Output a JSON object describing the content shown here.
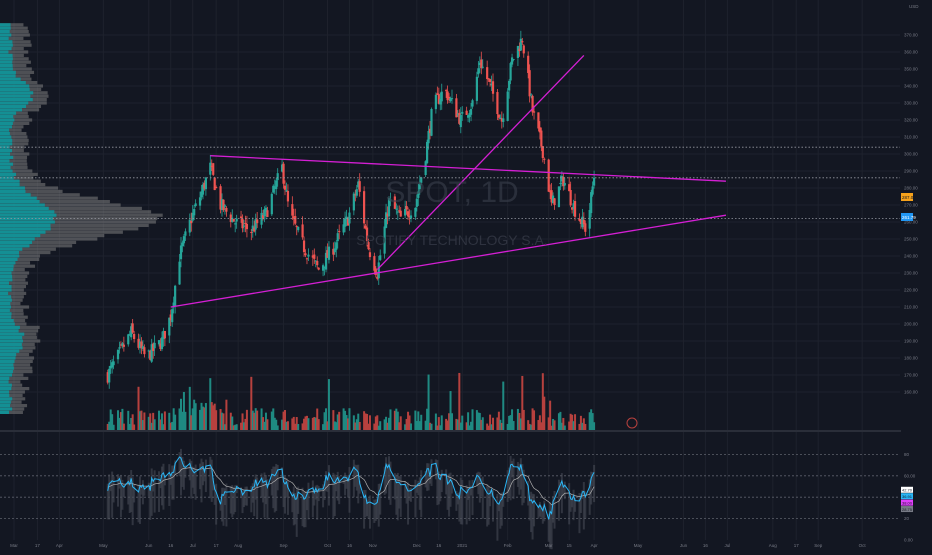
{
  "colors": {
    "background": "#131722",
    "grid": "#1e222d",
    "candle_up": "#26a69a",
    "candle_down": "#ef5350",
    "volume_up": "#1f8a82",
    "volume_down": "#b7413e",
    "trendline": "#d41fd4",
    "volume_profile_dark": "#0a9aa0",
    "volume_profile_light": "#808080",
    "rsi_line": "#29b6f6",
    "rsi_signal": "#b0b0b0",
    "price_tag_orange": "#f7a21b",
    "price_tag_blue": "#2196f3"
  },
  "watermark": {
    "symbol": "SPOT, 1D",
    "name": "SPOTIFY TECHNOLOGY S.A."
  },
  "price_axis": {
    "unit_label": "USD",
    "current_price_tag": "287.00",
    "secondary_price_tag": "261.79"
  },
  "indicator_axis": {
    "level_labels": [
      "80",
      "60.00",
      "40",
      "20",
      "0.00"
    ],
    "value_tags": [
      "42.70",
      "36.91",
      "38.00",
      "28.75"
    ]
  },
  "chart_data": {
    "type": "candlestick",
    "symbol": "SPOT",
    "interval": "1D",
    "ylim": [
      140,
      380
    ],
    "grid": true,
    "x_tick_labels": [
      "Mar",
      "17",
      "Apr",
      "May",
      "Jun",
      "16",
      "Jul",
      "17",
      "Aug",
      "Sep",
      "Oct",
      "16",
      "Nov",
      "Dec",
      "16",
      "2021",
      "Feb",
      "Mar",
      "15",
      "Apr",
      "May",
      "Jun",
      "16",
      "Jul",
      "Aug",
      "17",
      "Sep",
      "Oct"
    ],
    "y_tick_labels": [
      "370.00",
      "360.00",
      "350.00",
      "340.00",
      "330.00",
      "320.00",
      "310.00",
      "300.00",
      "290.00",
      "280.00",
      "270.00",
      "260.00",
      "250.00",
      "240.00",
      "230.00",
      "220.00",
      "210.00",
      "200.00",
      "190.00",
      "180.00",
      "170.00",
      "160.00"
    ],
    "price_path": [
      {
        "date": "2020-05-04",
        "close": 170
      },
      {
        "date": "2020-05-20",
        "close": 195
      },
      {
        "date": "2020-05-30",
        "close": 180
      },
      {
        "date": "2020-06-10",
        "close": 190
      },
      {
        "date": "2020-06-16",
        "close": 205
      },
      {
        "date": "2020-06-22",
        "close": 240
      },
      {
        "date": "2020-06-30",
        "close": 262
      },
      {
        "date": "2020-07-06",
        "close": 275
      },
      {
        "date": "2020-07-13",
        "close": 292
      },
      {
        "date": "2020-07-20",
        "close": 270
      },
      {
        "date": "2020-07-30",
        "close": 260
      },
      {
        "date": "2020-08-10",
        "close": 255
      },
      {
        "date": "2020-08-20",
        "close": 265
      },
      {
        "date": "2020-08-31",
        "close": 292
      },
      {
        "date": "2020-09-05",
        "close": 265
      },
      {
        "date": "2020-09-15",
        "close": 245
      },
      {
        "date": "2020-09-25",
        "close": 232
      },
      {
        "date": "2020-10-05",
        "close": 245
      },
      {
        "date": "2020-10-15",
        "close": 262
      },
      {
        "date": "2020-10-22",
        "close": 282
      },
      {
        "date": "2020-10-29",
        "close": 245
      },
      {
        "date": "2020-11-04",
        "close": 230
      },
      {
        "date": "2020-11-12",
        "close": 272
      },
      {
        "date": "2020-11-20",
        "close": 262
      },
      {
        "date": "2020-11-30",
        "close": 270
      },
      {
        "date": "2020-12-07",
        "close": 300
      },
      {
        "date": "2020-12-12",
        "close": 328
      },
      {
        "date": "2020-12-20",
        "close": 338
      },
      {
        "date": "2020-12-31",
        "close": 320
      },
      {
        "date": "2021-01-08",
        "close": 330
      },
      {
        "date": "2021-01-13",
        "close": 355
      },
      {
        "date": "2021-01-20",
        "close": 340
      },
      {
        "date": "2021-01-28",
        "close": 320
      },
      {
        "date": "2021-02-04",
        "close": 355
      },
      {
        "date": "2021-02-11",
        "close": 368
      },
      {
        "date": "2021-02-18",
        "close": 325
      },
      {
        "date": "2021-02-25",
        "close": 302
      },
      {
        "date": "2021-03-03",
        "close": 270
      },
      {
        "date": "2021-03-11",
        "close": 285
      },
      {
        "date": "2021-03-20",
        "close": 265
      },
      {
        "date": "2021-03-27",
        "close": 255
      },
      {
        "date": "2021-04-01",
        "close": 287
      }
    ],
    "trendlines": [
      {
        "name": "upper-triangle-line",
        "from": {
          "date": "2020-07-13",
          "price": 299
        },
        "to": {
          "date": "2021-06-30",
          "price": 284
        }
      },
      {
        "name": "lower-triangle-line",
        "from": {
          "date": "2020-06-16",
          "price": 210
        },
        "to": {
          "date": "2021-06-30",
          "price": 264
        }
      },
      {
        "name": "rising-support-line",
        "from": {
          "date": "2020-11-04",
          "price": 232
        },
        "to": {
          "date": "2021-03-25",
          "price": 358
        }
      }
    ],
    "horizontal_levels": [
      304,
      286,
      262
    ],
    "indicator": {
      "ylim": [
        0,
        100
      ],
      "levels": [
        80,
        60,
        40,
        20
      ],
      "current_value": 42.7
    }
  }
}
